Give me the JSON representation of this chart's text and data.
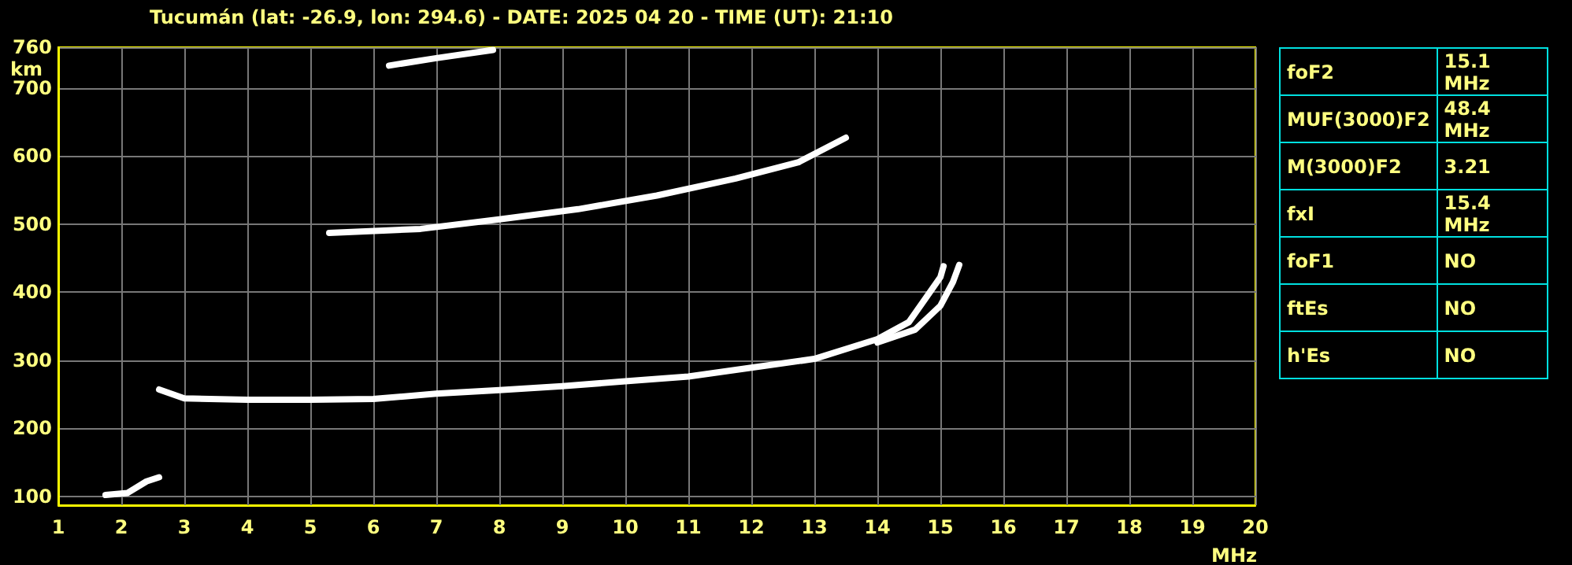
{
  "chart_data": [
    {
      "type": "line",
      "title": "Tucumán (lat: -26.9, lon: 294.6) - DATE: 2025 04 20 - TIME (UT): 21:10",
      "xlabel": "MHz",
      "ylabel": "km",
      "xlim": [
        1,
        20
      ],
      "ylim": [
        87,
        760
      ],
      "xticks": [
        1,
        2,
        3,
        4,
        5,
        6,
        7,
        8,
        9,
        10,
        11,
        12,
        13,
        14,
        15,
        16,
        17,
        18,
        19,
        20
      ],
      "yticks": [
        100,
        200,
        300,
        400,
        500,
        600,
        700,
        760
      ],
      "grid": true,
      "marker": "none",
      "line_style": "solid",
      "series": [
        {
          "color": "#ffffff",
          "x": [
            2.6,
            3,
            4,
            5,
            6,
            7,
            8,
            9,
            10,
            11,
            12,
            13,
            14,
            14.5,
            14.75,
            15,
            15.05
          ],
          "values": [
            257,
            244,
            242,
            242,
            243,
            251,
            256,
            262,
            269,
            276,
            289,
            302,
            331,
            356,
            389,
            422,
            438
          ]
        },
        {
          "color": "#ffffff",
          "x": [
            14,
            14.6,
            15,
            15.2,
            15.3
          ],
          "values": [
            326,
            345,
            380,
            415,
            440
          ]
        },
        {
          "color": "#ffffff",
          "x": [
            5.3,
            6.75,
            8,
            9.25,
            10.5,
            11.75,
            12.75,
            13.5
          ],
          "values": [
            487,
            493,
            507,
            522,
            542,
            567,
            591,
            627
          ]
        },
        {
          "color": "#ffffff",
          "x": [
            6.25,
            7,
            7.9
          ],
          "values": [
            733,
            744,
            756
          ]
        },
        {
          "color": "#ffffff",
          "x": [
            1.75,
            2.1,
            2.4,
            2.6
          ],
          "values": [
            102,
            105,
            122,
            128
          ]
        }
      ]
    },
    {
      "type": "other",
      "categories": [
        "foF2",
        "MUF(3000)F2",
        "M(3000)F2",
        "fxI",
        "foF1",
        "ftEs",
        "h'Es"
      ],
      "value_labels": [
        "15.1 MHz",
        "48.4 MHz",
        "3.21",
        "15.4 MHz",
        "NO",
        "NO",
        "NO"
      ]
    }
  ]
}
